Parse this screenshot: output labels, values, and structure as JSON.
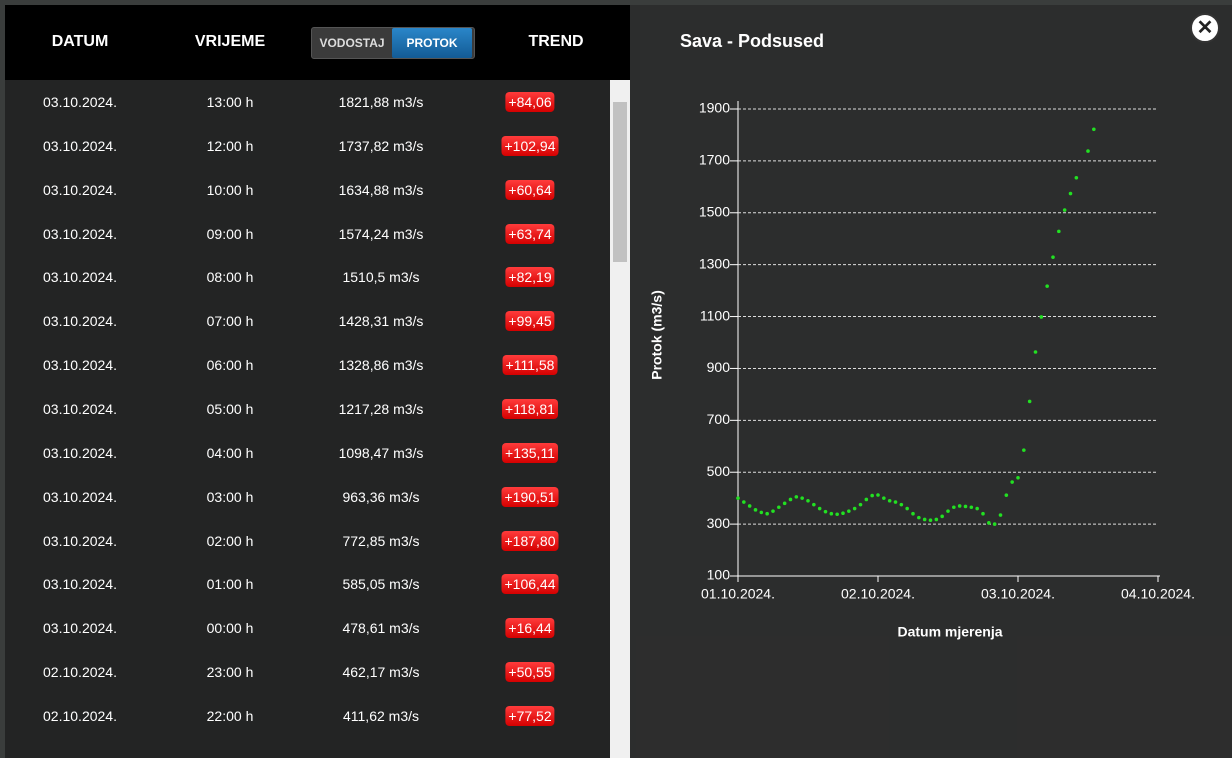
{
  "header": {
    "columns": [
      "DATUM",
      "VRIJEME",
      "TREND"
    ],
    "toggle": {
      "options": [
        "VODOSTAJ",
        "PROTOK"
      ],
      "active": 1
    }
  },
  "table": {
    "rows": [
      [
        "03.10.2024.",
        "13:00 h",
        "1821,88 m3/s",
        "+84,06"
      ],
      [
        "03.10.2024.",
        "12:00 h",
        "1737,82 m3/s",
        "+102,94"
      ],
      [
        "03.10.2024.",
        "10:00 h",
        "1634,88 m3/s",
        "+60,64"
      ],
      [
        "03.10.2024.",
        "09:00 h",
        "1574,24 m3/s",
        "+63,74"
      ],
      [
        "03.10.2024.",
        "08:00 h",
        "1510,5 m3/s",
        "+82,19"
      ],
      [
        "03.10.2024.",
        "07:00 h",
        "1428,31 m3/s",
        "+99,45"
      ],
      [
        "03.10.2024.",
        "06:00 h",
        "1328,86 m3/s",
        "+111,58"
      ],
      [
        "03.10.2024.",
        "05:00 h",
        "1217,28 m3/s",
        "+118,81"
      ],
      [
        "03.10.2024.",
        "04:00 h",
        "1098,47 m3/s",
        "+135,11"
      ],
      [
        "03.10.2024.",
        "03:00 h",
        "963,36 m3/s",
        "+190,51"
      ],
      [
        "03.10.2024.",
        "02:00 h",
        "772,85 m3/s",
        "+187,80"
      ],
      [
        "03.10.2024.",
        "01:00 h",
        "585,05 m3/s",
        "+106,44"
      ],
      [
        "03.10.2024.",
        "00:00 h",
        "478,61 m3/s",
        "+16,44"
      ],
      [
        "02.10.2024.",
        "23:00 h",
        "462,17 m3/s",
        "+50,55"
      ],
      [
        "02.10.2024.",
        "22:00 h",
        "411,62 m3/s",
        "+77,52"
      ]
    ]
  },
  "chart_data": {
    "type": "scatter",
    "title": "Sava - Podsused",
    "x_label": "Datum mjerenja",
    "y_label": "Protok (m3/s)",
    "color": "#22e022",
    "grid": true,
    "x": [
      0,
      1,
      2,
      3,
      4,
      5,
      6,
      7,
      8,
      9,
      10,
      11,
      12,
      13,
      14,
      15,
      16,
      17,
      18,
      19,
      20,
      21,
      22,
      23,
      24,
      25,
      26,
      27,
      28,
      29,
      30,
      31,
      32,
      33,
      34,
      35,
      36,
      37,
      38,
      39,
      40,
      41,
      42,
      43,
      44,
      45,
      46,
      47,
      48,
      49,
      50,
      51,
      52,
      53,
      54,
      55,
      56,
      57,
      58,
      60,
      61
    ],
    "values": [
      400,
      385,
      370,
      355,
      345,
      340,
      350,
      365,
      380,
      395,
      405,
      400,
      390,
      375,
      360,
      348,
      340,
      338,
      342,
      350,
      360,
      375,
      395,
      410,
      412,
      400,
      390,
      385,
      375,
      360,
      340,
      325,
      318,
      315,
      318,
      330,
      350,
      365,
      370,
      368,
      365,
      360,
      340,
      305,
      300,
      335,
      411.62,
      462.17,
      478.61,
      585.05,
      772.85,
      963.36,
      1098.47,
      1217.28,
      1328.86,
      1428.31,
      1510.5,
      1574.24,
      1634.88,
      1737.82,
      1821.88
    ],
    "xlim": [
      0,
      72
    ],
    "xticks": [
      {
        "value": 0,
        "label": "01.10.2024."
      },
      {
        "value": 24,
        "label": "02.10.2024."
      },
      {
        "value": 48,
        "label": "03.10.2024."
      },
      {
        "value": 72,
        "label": "04.10.2024."
      }
    ],
    "ylim": [
      100,
      1900
    ],
    "yticks": [
      100,
      300,
      500,
      700,
      900,
      1100,
      1300,
      1500,
      1700,
      1900
    ]
  }
}
